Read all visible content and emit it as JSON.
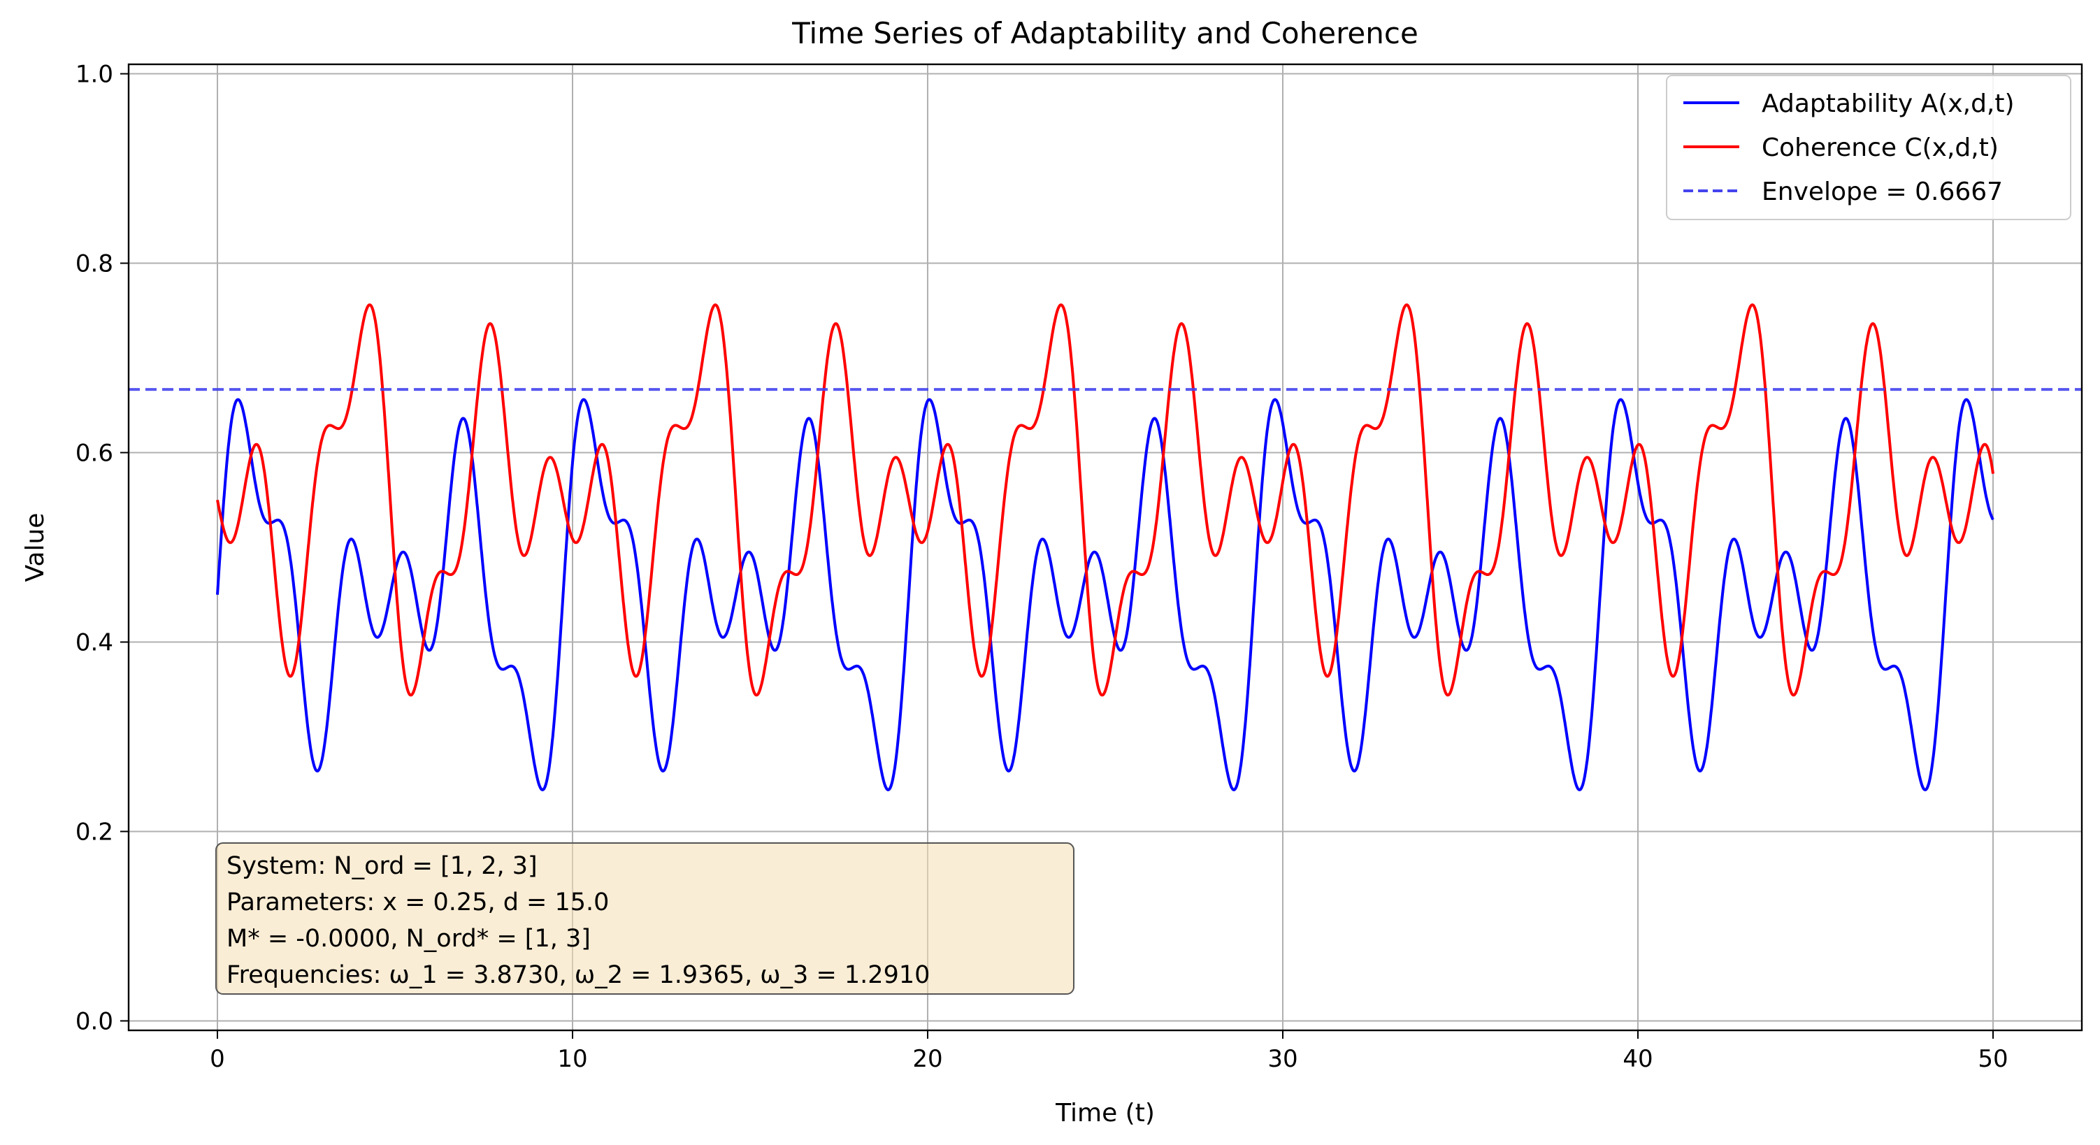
{
  "chart_data": {
    "type": "line",
    "title": "Time Series of Adaptability and Coherence",
    "xlabel": "Time (t)",
    "ylabel": "Value",
    "xlim": [
      -2.5,
      52.5
    ],
    "ylim": [
      -0.01,
      1.01
    ],
    "xticks": [
      0,
      10,
      20,
      30,
      40,
      50
    ],
    "yticks": [
      0.0,
      0.2,
      0.4,
      0.6,
      0.8,
      1.0
    ],
    "xtick_labels": [
      "0",
      "10",
      "20",
      "30",
      "40",
      "50"
    ],
    "ytick_labels": [
      "0.0",
      "0.2",
      "0.4",
      "0.6",
      "0.8",
      "1.0"
    ],
    "grid": true,
    "legend_position": "top-right",
    "t_range": [
      0,
      50
    ],
    "frequencies": [
      3.873,
      1.9365,
      1.291
    ],
    "series": [
      {
        "name": "Adaptability A(x,d,t)",
        "color": "#0000ff",
        "style": "solid",
        "model": "adaptability",
        "t0_value": 0.53,
        "t50_value": 0.42
      },
      {
        "name": "Coherence C(x,d,t)",
        "color": "#ff0000",
        "style": "solid",
        "model": "coherence",
        "t0_value": 0.47,
        "t50_value": 0.58
      },
      {
        "name": "Envelope = 0.6667",
        "color": "#4444ee",
        "style": "dashed",
        "value": 0.6667
      }
    ],
    "annotation": {
      "lines": [
        "System: N_ord = [1, 2, 3]",
        "Parameters: x = 0.25, d = 15.0",
        "M* = -0.0000, N_ord* = [1, 3]",
        "Frequencies: ω_1 = 3.8730, ω_2 = 1.9365, ω_3 = 1.2910"
      ],
      "box_color": "#f5deb3"
    }
  }
}
